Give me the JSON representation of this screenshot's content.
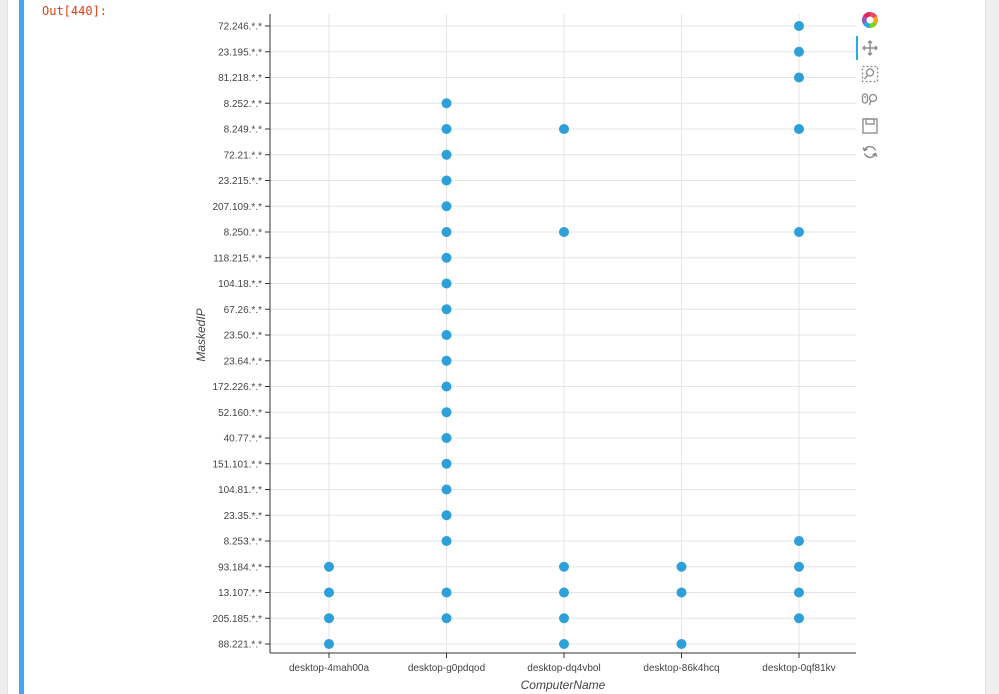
{
  "notebook": {
    "output_prompt": "Out[440]:"
  },
  "toolbar": {
    "tools": [
      {
        "name": "bokeh-logo-icon",
        "active": false
      },
      {
        "name": "pan-icon",
        "active": true
      },
      {
        "name": "box-zoom-icon",
        "active": false
      },
      {
        "name": "wheel-zoom-icon",
        "active": false
      },
      {
        "name": "save-icon",
        "active": false
      },
      {
        "name": "reset-icon",
        "active": false
      }
    ]
  },
  "chart_data": {
    "type": "scatter",
    "xlabel": "ComputerName",
    "ylabel": "MaskedIP",
    "categories_x": [
      "desktop-4mah00a",
      "desktop-g0pdqod",
      "desktop-dq4vbol",
      "desktop-86k4hcq",
      "desktop-0qf81kv"
    ],
    "categories_y": [
      "72.246.*.*",
      "23.195.*.*",
      "81.218.*.*",
      "8.252.*.*",
      "8.249.*.*",
      "72.21.*.*",
      "23.215.*.*",
      "207.109.*.*",
      "8.250.*.*",
      "118.215.*.*",
      "104.18.*.*",
      "67.26.*.*",
      "23.50.*.*",
      "23.64.*.*",
      "172.226.*.*",
      "52.160.*.*",
      "40.77.*.*",
      "151.101.*.*",
      "104.81.*.*",
      "23.35.*.*",
      "8.253.*.*",
      "93.184.*.*",
      "13.107.*.*",
      "205.185.*.*",
      "88.221.*.*"
    ],
    "points": [
      {
        "x": "desktop-4mah00a",
        "y": "93.184.*.*"
      },
      {
        "x": "desktop-4mah00a",
        "y": "13.107.*.*"
      },
      {
        "x": "desktop-4mah00a",
        "y": "205.185.*.*"
      },
      {
        "x": "desktop-4mah00a",
        "y": "88.221.*.*"
      },
      {
        "x": "desktop-g0pdqod",
        "y": "8.252.*.*"
      },
      {
        "x": "desktop-g0pdqod",
        "y": "8.249.*.*"
      },
      {
        "x": "desktop-g0pdqod",
        "y": "72.21.*.*"
      },
      {
        "x": "desktop-g0pdqod",
        "y": "23.215.*.*"
      },
      {
        "x": "desktop-g0pdqod",
        "y": "207.109.*.*"
      },
      {
        "x": "desktop-g0pdqod",
        "y": "8.250.*.*"
      },
      {
        "x": "desktop-g0pdqod",
        "y": "118.215.*.*"
      },
      {
        "x": "desktop-g0pdqod",
        "y": "104.18.*.*"
      },
      {
        "x": "desktop-g0pdqod",
        "y": "67.26.*.*"
      },
      {
        "x": "desktop-g0pdqod",
        "y": "23.50.*.*"
      },
      {
        "x": "desktop-g0pdqod",
        "y": "23.64.*.*"
      },
      {
        "x": "desktop-g0pdqod",
        "y": "172.226.*.*"
      },
      {
        "x": "desktop-g0pdqod",
        "y": "52.160.*.*"
      },
      {
        "x": "desktop-g0pdqod",
        "y": "40.77.*.*"
      },
      {
        "x": "desktop-g0pdqod",
        "y": "151.101.*.*"
      },
      {
        "x": "desktop-g0pdqod",
        "y": "104.81.*.*"
      },
      {
        "x": "desktop-g0pdqod",
        "y": "23.35.*.*"
      },
      {
        "x": "desktop-g0pdqod",
        "y": "8.253.*.*"
      },
      {
        "x": "desktop-g0pdqod",
        "y": "13.107.*.*"
      },
      {
        "x": "desktop-g0pdqod",
        "y": "205.185.*.*"
      },
      {
        "x": "desktop-dq4vbol",
        "y": "8.249.*.*"
      },
      {
        "x": "desktop-dq4vbol",
        "y": "8.250.*.*"
      },
      {
        "x": "desktop-dq4vbol",
        "y": "93.184.*.*"
      },
      {
        "x": "desktop-dq4vbol",
        "y": "13.107.*.*"
      },
      {
        "x": "desktop-dq4vbol",
        "y": "205.185.*.*"
      },
      {
        "x": "desktop-dq4vbol",
        "y": "88.221.*.*"
      },
      {
        "x": "desktop-86k4hcq",
        "y": "93.184.*.*"
      },
      {
        "x": "desktop-86k4hcq",
        "y": "13.107.*.*"
      },
      {
        "x": "desktop-86k4hcq",
        "y": "88.221.*.*"
      },
      {
        "x": "desktop-0qf81kv",
        "y": "72.246.*.*"
      },
      {
        "x": "desktop-0qf81kv",
        "y": "23.195.*.*"
      },
      {
        "x": "desktop-0qf81kv",
        "y": "81.218.*.*"
      },
      {
        "x": "desktop-0qf81kv",
        "y": "8.249.*.*"
      },
      {
        "x": "desktop-0qf81kv",
        "y": "8.250.*.*"
      },
      {
        "x": "desktop-0qf81kv",
        "y": "8.253.*.*"
      },
      {
        "x": "desktop-0qf81kv",
        "y": "93.184.*.*"
      },
      {
        "x": "desktop-0qf81kv",
        "y": "13.107.*.*"
      },
      {
        "x": "desktop-0qf81kv",
        "y": "205.185.*.*"
      }
    ],
    "grid": true,
    "legend": "none",
    "colors": {
      "marker": "#2d9fd9",
      "grid": "#e5e5e5",
      "axis": "#333333",
      "accent": "#42a5f5"
    }
  }
}
